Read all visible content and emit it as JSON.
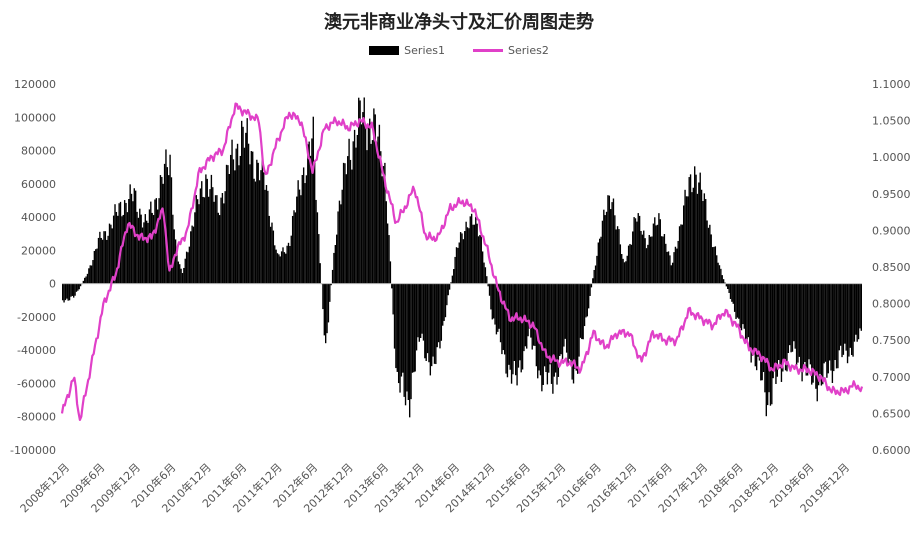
{
  "chart_data": {
    "type": "bar+line",
    "title": "澳元非商业净头寸及汇价周图走势",
    "legend": {
      "position": "top"
    },
    "colors": {
      "series1": "#000000",
      "series2": "#e040c8"
    },
    "y_left": {
      "ylim": [
        -100000,
        120000
      ],
      "ticks": [
        "120000",
        "100000",
        "80000",
        "60000",
        "40000",
        "20000",
        "0",
        "-20000",
        "-40000",
        "-60000",
        "-80000",
        "-100000"
      ]
    },
    "y_right": {
      "ylim": [
        0.6,
        1.1
      ],
      "ticks": [
        "1.1000",
        "1.0500",
        "1.0000",
        "0.9500",
        "0.9000",
        "0.8500",
        "0.8000",
        "0.7500",
        "0.7000",
        "0.6500",
        "0.6000"
      ]
    },
    "x_labels": [
      "2008年12月",
      "2009年6月",
      "2009年12月",
      "2010年6月",
      "2010年12月",
      "2011年6月",
      "2011年12月",
      "2012年6月",
      "2012年12月",
      "2013年6月",
      "2013年12月",
      "2014年6月",
      "2014年12月",
      "2015年6月",
      "2015年12月",
      "2016年6月",
      "2016年12月",
      "2017年6月",
      "2017年12月",
      "2018年6月",
      "2018年12月",
      "2019年6月",
      "2019年12月"
    ],
    "x_range": [
      "2008-11",
      "2020-01"
    ],
    "series": [
      {
        "name": "Series1",
        "type": "bar",
        "axis": "left",
        "points": [
          [
            "2008-11",
            -10000
          ],
          [
            "2009-01",
            -8000
          ],
          [
            "2009-03",
            5000
          ],
          [
            "2009-05",
            25000
          ],
          [
            "2009-07",
            35000
          ],
          [
            "2009-09",
            48000
          ],
          [
            "2009-11",
            52000
          ],
          [
            "2010-01",
            35000
          ],
          [
            "2010-03",
            55000
          ],
          [
            "2010-05",
            75000
          ],
          [
            "2010-06",
            20000
          ],
          [
            "2010-07",
            5000
          ],
          [
            "2010-09",
            40000
          ],
          [
            "2010-11",
            65000
          ],
          [
            "2011-01",
            45000
          ],
          [
            "2011-03",
            70000
          ],
          [
            "2011-05",
            90000
          ],
          [
            "2011-07",
            75000
          ],
          [
            "2011-09",
            60000
          ],
          [
            "2011-11",
            15000
          ],
          [
            "2012-01",
            25000
          ],
          [
            "2012-03",
            65000
          ],
          [
            "2012-05",
            85000
          ],
          [
            "2012-07",
            -40000
          ],
          [
            "2012-09",
            40000
          ],
          [
            "2012-11",
            80000
          ],
          [
            "2013-01",
            100000
          ],
          [
            "2013-03",
            95000
          ],
          [
            "2013-05",
            70000
          ],
          [
            "2013-07",
            -60000
          ],
          [
            "2013-09",
            -70000
          ],
          [
            "2013-11",
            -30000
          ],
          [
            "2014-01",
            -55000
          ],
          [
            "2014-03",
            -20000
          ],
          [
            "2014-05",
            20000
          ],
          [
            "2014-07",
            40000
          ],
          [
            "2014-09",
            30000
          ],
          [
            "2014-11",
            -20000
          ],
          [
            "2015-01",
            -45000
          ],
          [
            "2015-03",
            -60000
          ],
          [
            "2015-05",
            -30000
          ],
          [
            "2015-07",
            -55000
          ],
          [
            "2015-09",
            -60000
          ],
          [
            "2015-11",
            -40000
          ],
          [
            "2016-01",
            -55000
          ],
          [
            "2016-03",
            -15000
          ],
          [
            "2016-05",
            30000
          ],
          [
            "2016-07",
            55000
          ],
          [
            "2016-09",
            10000
          ],
          [
            "2016-11",
            40000
          ],
          [
            "2017-01",
            25000
          ],
          [
            "2017-03",
            40000
          ],
          [
            "2017-05",
            10000
          ],
          [
            "2017-07",
            45000
          ],
          [
            "2017-09",
            70000
          ],
          [
            "2017-11",
            40000
          ],
          [
            "2018-01",
            10000
          ],
          [
            "2018-03",
            -10000
          ],
          [
            "2018-05",
            -30000
          ],
          [
            "2018-07",
            -45000
          ],
          [
            "2018-09",
            -70000
          ],
          [
            "2018-11",
            -55000
          ],
          [
            "2019-01",
            -40000
          ],
          [
            "2019-03",
            -50000
          ],
          [
            "2019-05",
            -60000
          ],
          [
            "2019-07",
            -55000
          ],
          [
            "2019-09",
            -45000
          ],
          [
            "2019-11",
            -40000
          ],
          [
            "2020-01",
            -30000
          ]
        ]
      },
      {
        "name": "Series2",
        "type": "line",
        "axis": "right",
        "points": [
          [
            "2008-11",
            0.65
          ],
          [
            "2009-01",
            0.7
          ],
          [
            "2009-02",
            0.64
          ],
          [
            "2009-04",
            0.72
          ],
          [
            "2009-06",
            0.8
          ],
          [
            "2009-08",
            0.84
          ],
          [
            "2009-10",
            0.91
          ],
          [
            "2009-12",
            0.89
          ],
          [
            "2010-02",
            0.89
          ],
          [
            "2010-04",
            0.93
          ],
          [
            "2010-05",
            0.84
          ],
          [
            "2010-06",
            0.87
          ],
          [
            "2010-08",
            0.9
          ],
          [
            "2010-10",
            0.98
          ],
          [
            "2010-12",
            1.0
          ],
          [
            "2011-02",
            1.01
          ],
          [
            "2011-04",
            1.07
          ],
          [
            "2011-06",
            1.06
          ],
          [
            "2011-08",
            1.05
          ],
          [
            "2011-09",
            0.97
          ],
          [
            "2011-11",
            1.02
          ],
          [
            "2012-01",
            1.06
          ],
          [
            "2012-03",
            1.05
          ],
          [
            "2012-05",
            0.98
          ],
          [
            "2012-07",
            1.04
          ],
          [
            "2012-09",
            1.05
          ],
          [
            "2012-11",
            1.04
          ],
          [
            "2013-01",
            1.05
          ],
          [
            "2013-03",
            1.04
          ],
          [
            "2013-05",
            0.97
          ],
          [
            "2013-07",
            0.91
          ],
          [
            "2013-09",
            0.94
          ],
          [
            "2013-10",
            0.96
          ],
          [
            "2013-12",
            0.89
          ],
          [
            "2014-02",
            0.89
          ],
          [
            "2014-04",
            0.93
          ],
          [
            "2014-06",
            0.94
          ],
          [
            "2014-08",
            0.93
          ],
          [
            "2014-10",
            0.88
          ],
          [
            "2014-12",
            0.82
          ],
          [
            "2015-02",
            0.78
          ],
          [
            "2015-04",
            0.78
          ],
          [
            "2015-06",
            0.77
          ],
          [
            "2015-08",
            0.73
          ],
          [
            "2015-10",
            0.72
          ],
          [
            "2015-12",
            0.72
          ],
          [
            "2016-02",
            0.71
          ],
          [
            "2016-04",
            0.76
          ],
          [
            "2016-06",
            0.74
          ],
          [
            "2016-08",
            0.76
          ],
          [
            "2016-10",
            0.76
          ],
          [
            "2016-12",
            0.72
          ],
          [
            "2017-02",
            0.76
          ],
          [
            "2017-04",
            0.75
          ],
          [
            "2017-06",
            0.75
          ],
          [
            "2017-08",
            0.79
          ],
          [
            "2017-10",
            0.78
          ],
          [
            "2017-12",
            0.77
          ],
          [
            "2018-02",
            0.79
          ],
          [
            "2018-04",
            0.77
          ],
          [
            "2018-06",
            0.74
          ],
          [
            "2018-08",
            0.73
          ],
          [
            "2018-10",
            0.71
          ],
          [
            "2018-12",
            0.72
          ],
          [
            "2019-02",
            0.71
          ],
          [
            "2019-04",
            0.71
          ],
          [
            "2019-06",
            0.7
          ],
          [
            "2019-08",
            0.68
          ],
          [
            "2019-10",
            0.68
          ],
          [
            "2019-12",
            0.69
          ],
          [
            "2020-01",
            0.68
          ]
        ]
      }
    ]
  }
}
